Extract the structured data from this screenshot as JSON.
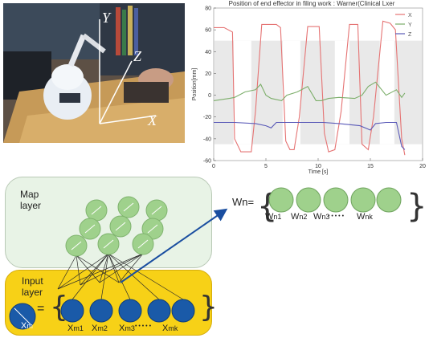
{
  "photo": {
    "axis_labels": {
      "y": "Y",
      "z": "Z",
      "x": "X"
    }
  },
  "chart_data": {
    "type": "line",
    "title": "Position of end effector in filing work : Warner(Clinical Lxer",
    "xlabel": "Time [s]",
    "ylabel": "Position[mm]",
    "xlim": [
      0,
      20
    ],
    "ylim": [
      -60,
      80
    ],
    "x_ticks": [
      "0",
      "5",
      "10",
      "15",
      "20"
    ],
    "y_ticks": [
      "80",
      "60",
      "40",
      "20",
      "0",
      "-20",
      "-40",
      "-60"
    ],
    "legend_placement": "top-right",
    "series": [
      {
        "name": "X",
        "color": "#e57373",
        "x": [
          0,
          0.2,
          1.0,
          1.8,
          2.0,
          2.6,
          3.2,
          3.6,
          4.0,
          4.6,
          5.2,
          6.0,
          6.4,
          6.9,
          7.3,
          7.7,
          8.2,
          9.0,
          9.8,
          10.1,
          10.6,
          11.0,
          11.6,
          12.2,
          13.0,
          13.8,
          14.2,
          14.8,
          15.3,
          16.2,
          16.9,
          17.4,
          18.0,
          18.3
        ],
        "y": [
          62,
          62,
          62,
          58,
          -40,
          -52,
          -52,
          -52,
          -15,
          65,
          65,
          65,
          62,
          -42,
          -50,
          -50,
          -20,
          63,
          63,
          63,
          -35,
          -52,
          -50,
          -15,
          65,
          65,
          -45,
          -50,
          -20,
          68,
          66,
          60,
          -40,
          -55
        ]
      },
      {
        "name": "Y",
        "color": "#7cae6a",
        "x": [
          0,
          1.5,
          2.0,
          3.0,
          4.0,
          4.5,
          5.0,
          5.5,
          6.5,
          7.0,
          8.0,
          9.0,
          9.8,
          10.3,
          11.0,
          12.0,
          13.5,
          14.2,
          14.8,
          15.5,
          16.5,
          17.5,
          18.0,
          18.3
        ],
        "y": [
          -5,
          -3,
          -2,
          3,
          5,
          10,
          0,
          -3,
          -5,
          0,
          3,
          8,
          -5,
          -5,
          -3,
          -2,
          -3,
          0,
          8,
          12,
          0,
          5,
          -2,
          2
        ]
      },
      {
        "name": "Z",
        "color": "#5a5ab8",
        "x": [
          0,
          2.0,
          4.0,
          5.0,
          5.5,
          6.0,
          8.0,
          9.5,
          10.5,
          12.0,
          14.0,
          15.0,
          15.5,
          16.5,
          17.5,
          18.0,
          18.3
        ],
        "y": [
          -25,
          -25,
          -26,
          -28,
          -30,
          -25,
          -25,
          -25,
          -25,
          -26,
          -28,
          -32,
          -26,
          -25,
          -25,
          -47,
          -50
        ]
      }
    ],
    "highlight_bands": [
      [
        1.9,
        3.6
      ],
      [
        6.6,
        8.3
      ],
      [
        11.6,
        13.0
      ],
      [
        15.9,
        17.3
      ]
    ]
  },
  "map_layer": {
    "label_line1": "Map",
    "label_line2": "layer"
  },
  "input_layer": {
    "label_line1": "Input",
    "label_line2": "layer",
    "xm": "X",
    "xm_sub": "m"
  },
  "input_eq": "=",
  "input_vector": [
    {
      "base": "X",
      "sub": "m1"
    },
    {
      "base": "X",
      "sub": "m2"
    },
    {
      "base": "X",
      "sub": "m3"
    },
    {
      "base": "X",
      "sub": "mk"
    }
  ],
  "input_dots": "• • • • •",
  "wn": {
    "label": "Wn=",
    "items": [
      {
        "base": "W",
        "sub": "n1"
      },
      {
        "base": "W",
        "sub": "n2"
      },
      {
        "base": "W",
        "sub": "n3"
      },
      {
        "base": "W",
        "sub": "nk"
      }
    ],
    "dots": "• • • • •"
  },
  "colors": {
    "map_node": "#9fd18c",
    "input_node": "#1a5aa8",
    "arrow": "#1a4ea0"
  }
}
